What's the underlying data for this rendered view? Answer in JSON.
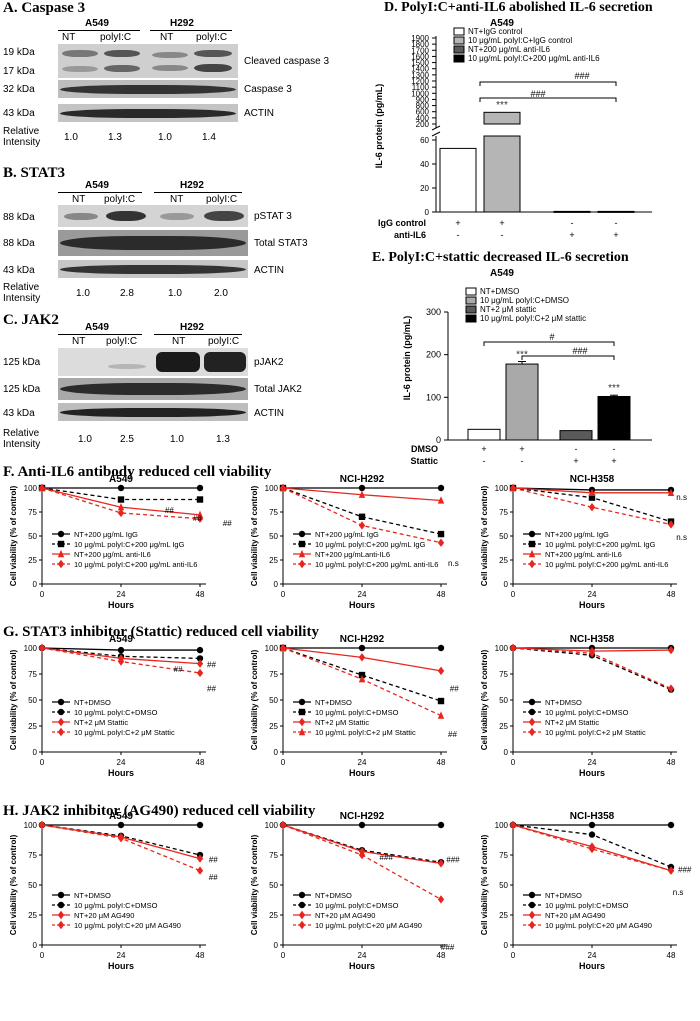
{
  "panelA": {
    "title": "A. Caspase 3",
    "groups": [
      "A549",
      "H292"
    ],
    "lanes": [
      "NT",
      "polyI:C",
      "NT",
      "polyI:C"
    ],
    "rows": [
      {
        "kda": [
          "19 kDa",
          "17 kDa"
        ],
        "label": "Cleaved caspase 3"
      },
      {
        "kda": [
          "32 kDa"
        ],
        "label": "Caspase 3"
      },
      {
        "kda": [
          "43 kDa"
        ],
        "label": "ACTIN"
      }
    ],
    "intensity_label": [
      "Relative",
      "Intensity"
    ],
    "intensity": [
      "1.0",
      "1.3",
      "1.0",
      "1.4"
    ]
  },
  "panelB": {
    "title": "B. STAT3",
    "groups": [
      "A549",
      "H292"
    ],
    "lanes": [
      "NT",
      "polyI:C",
      "NT",
      "polyI:C"
    ],
    "rows": [
      {
        "kda": [
          "88 kDa"
        ],
        "label": "pSTAT 3"
      },
      {
        "kda": [
          "88 kDa"
        ],
        "label": "Total STAT3"
      },
      {
        "kda": [
          "43 kDa"
        ],
        "label": "ACTIN"
      }
    ],
    "intensity_label": [
      "Relative",
      "Intensity"
    ],
    "intensity": [
      "1.0",
      "2.8",
      "1.0",
      "2.0"
    ]
  },
  "panelC": {
    "title": "C. JAK2",
    "groups": [
      "A549",
      "H292"
    ],
    "lanes": [
      "NT",
      "polyI:C",
      "NT",
      "polyI:C"
    ],
    "rows": [
      {
        "kda": [
          "125 kDa"
        ],
        "label": "pJAK2"
      },
      {
        "kda": [
          "125 kDa"
        ],
        "label": "Total JAK2"
      },
      {
        "kda": [
          "43 kDa"
        ],
        "label": "ACTIN"
      }
    ],
    "intensity_label": [
      "Relative",
      "Intensity"
    ],
    "intensity": [
      "1.0",
      "2.5",
      "1.0",
      "1.3"
    ]
  },
  "panelF_title": "F. Anti-IL6 antibody reduced cell viability",
  "panelG_title": "G. STAT3 inhibitor (Stattic) reduced cell viability",
  "panelH_title": "H. JAK2 inhibitor (AG490) reduced cell viability",
  "colors": {
    "black": "#000000",
    "red": "#e8261f",
    "gray": "#9e9e9e",
    "dark": "#3a3a3a"
  },
  "chart_data": [
    {
      "id": "D",
      "type": "bar",
      "title": "D. PolyI:C+anti-IL6 abolished IL-6 secretion",
      "subtitle": "A549",
      "ylabel": "IL-6 protein (pg/mL)",
      "yticks_lower": [
        "0",
        "20",
        "40",
        "60"
      ],
      "yticks_upper": [
        "200",
        "400",
        "600",
        "800",
        "900",
        "1000",
        "1100",
        "1200",
        "1300",
        "1400",
        "1500",
        "1600",
        "1700",
        "1800",
        "1900"
      ],
      "legend": [
        "NT+IgG control",
        "10 μg/mL polyI:C+IgG control",
        "NT+200 μg/mL anti-IL6",
        "10 μg/mL polyI:C+200 μg/mL anti-IL6"
      ],
      "values": [
        53,
        580,
        0.5,
        0.5
      ],
      "errors": [
        0.5,
        10,
        0,
        0
      ],
      "bar_colors": [
        "#ffffff",
        "#b5b5b5",
        "#5a5a5a",
        "#000000"
      ],
      "sig": [
        "***"
      ],
      "sig_bracket": [
        "###",
        "###"
      ],
      "condition_rows": [
        {
          "name": "IgG control",
          "marks": [
            "+",
            "+",
            "-",
            "-"
          ]
        },
        {
          "name": "anti-IL6",
          "marks": [
            "-",
            "-",
            "+",
            "+"
          ]
        }
      ]
    },
    {
      "id": "E",
      "type": "bar",
      "title": "E. PolyI:C+stattic decreased IL-6 secretion",
      "subtitle": "A549",
      "ylabel": "IL-6 protein (pg/mL)",
      "ylim": [
        0,
        300
      ],
      "yticks": [
        "0",
        "100",
        "200",
        "300"
      ],
      "legend": [
        "NT+DMSO",
        "10 μg/mL polyI:C+DMSO",
        "NT+2 μM stattic",
        "10 μg/mL polyI:C+2 μM stattic"
      ],
      "values": [
        25,
        178,
        22,
        102
      ],
      "errors": [
        0,
        6,
        0,
        3
      ],
      "bar_colors": [
        "#ffffff",
        "#a9a9a9",
        "#5a5a5a",
        "#000000"
      ],
      "sig": [
        "***",
        "***"
      ],
      "sig_bracket": [
        "#",
        "###"
      ],
      "condition_rows": [
        {
          "name": "DMSO",
          "marks": [
            "+",
            "+",
            "-",
            "-"
          ]
        },
        {
          "name": "Stattic",
          "marks": [
            "-",
            "-",
            "+",
            "+"
          ]
        }
      ]
    },
    {
      "id": "F1",
      "type": "line",
      "title": "A549",
      "x": [
        0,
        24,
        48
      ],
      "xlabel": "Hours",
      "ylabel": "Cell viability (% of control)",
      "ylim": [
        0,
        100
      ],
      "yticks": [
        "0",
        "25",
        "50",
        "75",
        "100"
      ],
      "series": [
        {
          "name": "NT+200 μg/mL IgG",
          "values": [
            100,
            100,
            100
          ],
          "color": "#000000",
          "dash": false,
          "marker": "circle"
        },
        {
          "name": "10 μg/mL polyI:C+200 μg/mL IgG",
          "values": [
            100,
            88,
            88
          ],
          "color": "#000000",
          "dash": true,
          "marker": "square"
        },
        {
          "name": "NT+200 μg/mL anti-IL6",
          "values": [
            100,
            80,
            72
          ],
          "color": "#e8261f",
          "dash": false,
          "marker": "triangle"
        },
        {
          "name": "10 μg/mL polyI:C+200 μg/mL anti-IL6",
          "values": [
            100,
            74,
            68
          ],
          "color": "#e8261f",
          "dash": true,
          "marker": "diamond"
        }
      ],
      "annotations": [
        "##",
        "##",
        "##"
      ]
    },
    {
      "id": "F2",
      "type": "line",
      "title": "NCI-H292",
      "x": [
        0,
        24,
        48
      ],
      "xlabel": "Hours",
      "ylabel": "Cell viability (% of control)",
      "ylim": [
        0,
        100
      ],
      "yticks": [
        "0",
        "25",
        "50",
        "75",
        "100"
      ],
      "series": [
        {
          "name": "NT+200 μg/mL IgG",
          "values": [
            100,
            100,
            100
          ],
          "color": "#000000",
          "dash": false,
          "marker": "circle"
        },
        {
          "name": "10 μg/mL polyI:C+200 μg/mL IgG",
          "values": [
            100,
            70,
            52
          ],
          "color": "#000000",
          "dash": true,
          "marker": "square"
        },
        {
          "name": "NT+200 μg/mLanti-IL6",
          "values": [
            100,
            93,
            87
          ],
          "color": "#e8261f",
          "dash": false,
          "marker": "triangle"
        },
        {
          "name": "10 μg/mL polyI:C+200 μg/mL anti-IL6",
          "values": [
            100,
            61,
            43
          ],
          "color": "#e8261f",
          "dash": true,
          "marker": "diamond"
        }
      ],
      "annotations": [
        "n.s",
        "n.s"
      ]
    },
    {
      "id": "F3",
      "type": "line",
      "title": "NCI-H358",
      "x": [
        0,
        24,
        48
      ],
      "xlabel": "Hours",
      "ylabel": "Cell viability (% of control)",
      "ylim": [
        0,
        100
      ],
      "yticks": [
        "0",
        "25",
        "50",
        "75",
        "100"
      ],
      "series": [
        {
          "name": "NT+200 μg/mL IgG",
          "values": [
            100,
            98,
            98
          ],
          "color": "#000000",
          "dash": false,
          "marker": "circle"
        },
        {
          "name": "10 μg/mL polyI:C+200 μg/mL IgG",
          "values": [
            100,
            90,
            65
          ],
          "color": "#000000",
          "dash": true,
          "marker": "square"
        },
        {
          "name": "NT+200 μg/mL anti-IL6",
          "values": [
            100,
            95,
            95
          ],
          "color": "#e8261f",
          "dash": false,
          "marker": "triangle"
        },
        {
          "name": "10 μg/mL polyI:C+200 μg/mL anti-IL6",
          "values": [
            100,
            80,
            62
          ],
          "color": "#e8261f",
          "dash": true,
          "marker": "diamond"
        }
      ],
      "annotations": [
        "n.s",
        "n.s"
      ]
    },
    {
      "id": "G1",
      "type": "line",
      "title": "A549",
      "x": [
        0,
        24,
        48
      ],
      "xlabel": "Hours",
      "ylabel": "Cell viability (% of control)",
      "ylim": [
        0,
        100
      ],
      "yticks": [
        "0",
        "25",
        "50",
        "75",
        "100"
      ],
      "series": [
        {
          "name": "NT+DMSO",
          "values": [
            100,
            98,
            98
          ],
          "color": "#000000",
          "dash": false,
          "marker": "circle"
        },
        {
          "name": "10 μg/mL polyI:C+DMSO",
          "values": [
            100,
            92,
            90
          ],
          "color": "#000000",
          "dash": true,
          "marker": "circle"
        },
        {
          "name": "NT+2 μM Stattic",
          "values": [
            100,
            90,
            85
          ],
          "color": "#e8261f",
          "dash": false,
          "marker": "diamond"
        },
        {
          "name": "10 μg/mL polyI:C+2 μM Stattic",
          "values": [
            100,
            87,
            76
          ],
          "color": "#e8261f",
          "dash": true,
          "marker": "diamond"
        }
      ],
      "annotations": [
        "##",
        "##",
        "##"
      ]
    },
    {
      "id": "G2",
      "type": "line",
      "title": "NCI-H292",
      "x": [
        0,
        24,
        48
      ],
      "xlabel": "Hours",
      "ylabel": "Cell viability (% of control)",
      "ylim": [
        0,
        100
      ],
      "yticks": [
        "0",
        "25",
        "50",
        "75",
        "100"
      ],
      "series": [
        {
          "name": "NT+DMSO",
          "values": [
            100,
            100,
            100
          ],
          "color": "#000000",
          "dash": false,
          "marker": "circle"
        },
        {
          "name": "10 μg/mL polyI:C+DMSO",
          "values": [
            100,
            74,
            49
          ],
          "color": "#000000",
          "dash": true,
          "marker": "square"
        },
        {
          "name": "NT+2 μM Stattic",
          "values": [
            100,
            91,
            78
          ],
          "color": "#e8261f",
          "dash": false,
          "marker": "diamond"
        },
        {
          "name": "10 μg/mL polyI:C+2 μM Stattic",
          "values": [
            100,
            70,
            35
          ],
          "color": "#e8261f",
          "dash": true,
          "marker": "triangle"
        }
      ],
      "annotations": [
        "##",
        "##"
      ]
    },
    {
      "id": "G3",
      "type": "line",
      "title": "NCI-H358",
      "x": [
        0,
        24,
        48
      ],
      "xlabel": "Hours",
      "ylabel": "Cell viability (% of control)",
      "ylim": [
        0,
        100
      ],
      "yticks": [
        "0",
        "25",
        "50",
        "75",
        "100"
      ],
      "series": [
        {
          "name": "NT+DMSO",
          "values": [
            100,
            100,
            100
          ],
          "color": "#000000",
          "dash": false,
          "marker": "circle"
        },
        {
          "name": "10 μg/mL polyI:C+DMSO",
          "values": [
            100,
            93,
            60
          ],
          "color": "#000000",
          "dash": true,
          "marker": "circle"
        },
        {
          "name": "NT+2 μM Stattic",
          "values": [
            100,
            97,
            98
          ],
          "color": "#e8261f",
          "dash": false,
          "marker": "diamond"
        },
        {
          "name": "10 μg/mL polyI:C+2 μM Stattic",
          "values": [
            100,
            95,
            61
          ],
          "color": "#e8261f",
          "dash": true,
          "marker": "diamond"
        }
      ],
      "annotations": []
    },
    {
      "id": "H1",
      "type": "line",
      "title": "A549",
      "x": [
        0,
        24,
        48
      ],
      "xlabel": "Hours",
      "ylabel": "Cell viability (% of control)",
      "ylim": [
        0,
        100
      ],
      "yticks": [
        "0",
        "25",
        "50",
        "75",
        "100"
      ],
      "series": [
        {
          "name": "NT+DMSO",
          "values": [
            100,
            100,
            100
          ],
          "color": "#000000",
          "dash": false,
          "marker": "circle"
        },
        {
          "name": "10 μg/mL polyI:C+DMSO",
          "values": [
            100,
            91,
            75
          ],
          "color": "#000000",
          "dash": true,
          "marker": "circle"
        },
        {
          "name": "NT+20 μM AG490",
          "values": [
            100,
            90,
            72
          ],
          "color": "#e8261f",
          "dash": false,
          "marker": "diamond"
        },
        {
          "name": "10 μg/mL polyI:C+20 μM AG490",
          "values": [
            100,
            89,
            62
          ],
          "color": "#e8261f",
          "dash": true,
          "marker": "diamond"
        }
      ],
      "annotations": [
        "##",
        "##"
      ]
    },
    {
      "id": "H2",
      "type": "line",
      "title": "NCI-H292",
      "x": [
        0,
        24,
        48
      ],
      "xlabel": "Hours",
      "ylabel": "Cell viability (% of control)",
      "ylim": [
        0,
        100
      ],
      "yticks": [
        "0",
        "25",
        "50",
        "75",
        "100"
      ],
      "series": [
        {
          "name": "NT+DMSO",
          "values": [
            100,
            100,
            100
          ],
          "color": "#000000",
          "dash": false,
          "marker": "circle"
        },
        {
          "name": "10 μg/mL polyI:C+DMSO",
          "values": [
            100,
            79,
            69
          ],
          "color": "#000000",
          "dash": true,
          "marker": "circle"
        },
        {
          "name": "NT+20 μM AG490",
          "values": [
            100,
            78,
            68
          ],
          "color": "#e8261f",
          "dash": false,
          "marker": "diamond"
        },
        {
          "name": "10 μg/mL polyI:C+20 μM AG490",
          "values": [
            100,
            75,
            38
          ],
          "color": "#e8261f",
          "dash": true,
          "marker": "diamond"
        }
      ],
      "annotations": [
        "###",
        "###",
        "###"
      ]
    },
    {
      "id": "H3",
      "type": "line",
      "title": "NCI-H358",
      "x": [
        0,
        24,
        48
      ],
      "xlabel": "Hours",
      "ylabel": "Cell viability (% of control)",
      "ylim": [
        0,
        100
      ],
      "yticks": [
        "0",
        "25",
        "50",
        "75",
        "100"
      ],
      "series": [
        {
          "name": "NT+DMSO",
          "values": [
            100,
            100,
            100
          ],
          "color": "#000000",
          "dash": false,
          "marker": "circle"
        },
        {
          "name": "10 μg/mL polyI:C+DMSO",
          "values": [
            100,
            92,
            65
          ],
          "color": "#000000",
          "dash": true,
          "marker": "circle"
        },
        {
          "name": "NT+20 μM AG490",
          "values": [
            100,
            82,
            62
          ],
          "color": "#e8261f",
          "dash": false,
          "marker": "diamond"
        },
        {
          "name": "10 μg/mL polyI:C+20 μM AG490",
          "values": [
            100,
            80,
            62
          ],
          "color": "#e8261f",
          "dash": true,
          "marker": "diamond"
        }
      ],
      "annotations": [
        "###",
        "n.s"
      ]
    }
  ]
}
